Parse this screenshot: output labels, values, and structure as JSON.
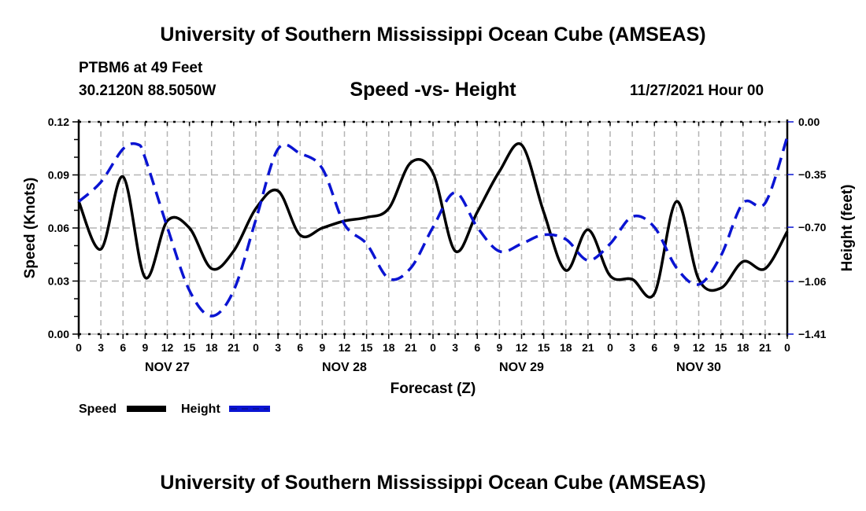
{
  "header": {
    "title": "University of Southern Mississippi Ocean Cube (AMSEAS)",
    "station": "PTBM6 at 49 Feet",
    "coords": "30.2120N  88.5050W",
    "subtitle": "Speed -vs- Height",
    "datestamp": "11/27/2021 Hour 00"
  },
  "footer": {
    "title": "University of Southern Mississippi Ocean Cube (AMSEAS)"
  },
  "chart_data": {
    "type": "line",
    "title": "Speed -vs- Height",
    "xlabel": "Forecast (Z)",
    "ylabel": "Speed (Knots)",
    "y2label": "Height (feet)",
    "xlim": [
      0,
      96
    ],
    "ylim": [
      0.0,
      0.12
    ],
    "y2lim": [
      -1.41,
      0.0
    ],
    "grid": true,
    "legend_position": "bottom-left",
    "x_tick_values": [
      0,
      3,
      6,
      9,
      12,
      15,
      18,
      21,
      24,
      27,
      30,
      33,
      36,
      39,
      42,
      45,
      48,
      51,
      54,
      57,
      60,
      63,
      66,
      69,
      72,
      75,
      78,
      81,
      84,
      87,
      90,
      93,
      96
    ],
    "x_tick_labels": [
      "0",
      "3",
      "6",
      "9",
      "12",
      "15",
      "18",
      "21",
      "0",
      "3",
      "6",
      "9",
      "12",
      "15",
      "18",
      "21",
      "0",
      "3",
      "6",
      "9",
      "12",
      "15",
      "18",
      "21",
      "0",
      "3",
      "6",
      "9",
      "12",
      "15",
      "18",
      "21",
      "0"
    ],
    "day_labels": [
      {
        "label": "NOV 27",
        "center_hour": 12
      },
      {
        "label": "NOV 28",
        "center_hour": 36
      },
      {
        "label": "NOV 29",
        "center_hour": 60
      },
      {
        "label": "NOV 30",
        "center_hour": 84
      }
    ],
    "y_tick_values": [
      0.0,
      0.03,
      0.06,
      0.09,
      0.12
    ],
    "y_tick_labels": [
      "0.00",
      "0.03",
      "0.06",
      "0.09",
      "0.12"
    ],
    "y2_tick_values": [
      0.0,
      -0.35,
      -0.7,
      -1.06,
      -1.41
    ],
    "y2_tick_labels": [
      "0.00",
      "−0.35",
      "−0.70",
      "−1.06",
      "−1.41"
    ],
    "series": [
      {
        "name": "Speed",
        "axis": "left",
        "color": "#000000",
        "style": "solid",
        "x": [
          0,
          3,
          6,
          9,
          12,
          15,
          18,
          21,
          24,
          27,
          30,
          33,
          36,
          39,
          42,
          45,
          48,
          51,
          54,
          57,
          60,
          63,
          66,
          69,
          72,
          75,
          78,
          81,
          84,
          87,
          90,
          93,
          96
        ],
        "values": [
          0.075,
          0.048,
          0.089,
          0.032,
          0.064,
          0.06,
          0.037,
          0.047,
          0.071,
          0.081,
          0.056,
          0.06,
          0.064,
          0.066,
          0.071,
          0.097,
          0.091,
          0.047,
          0.069,
          0.092,
          0.107,
          0.069,
          0.036,
          0.059,
          0.033,
          0.031,
          0.023,
          0.075,
          0.031,
          0.026,
          0.041,
          0.037,
          0.058
        ]
      },
      {
        "name": "Height",
        "axis": "right",
        "color": "#0a14d2",
        "style": "dashed",
        "x": [
          0,
          3,
          6,
          8,
          9,
          12,
          15,
          18,
          21,
          24,
          27,
          30,
          33,
          36,
          39,
          42,
          45,
          48,
          51,
          54,
          57,
          60,
          63,
          66,
          69,
          72,
          75,
          78,
          81,
          84,
          87,
          90,
          93,
          96
        ],
        "values": [
          -0.53,
          -0.4,
          -0.18,
          -0.15,
          -0.24,
          -0.7,
          -1.12,
          -1.29,
          -1.12,
          -0.65,
          -0.18,
          -0.21,
          -0.31,
          -0.68,
          -0.81,
          -1.04,
          -0.97,
          -0.7,
          -0.47,
          -0.7,
          -0.86,
          -0.81,
          -0.75,
          -0.78,
          -0.92,
          -0.81,
          -0.63,
          -0.7,
          -0.97,
          -1.08,
          -0.89,
          -0.54,
          -0.54,
          -0.1
        ]
      }
    ],
    "legend": [
      {
        "label": "Speed",
        "style": "solid",
        "color": "#000000"
      },
      {
        "label": "Height",
        "style": "dashed",
        "color": "#0a14d2"
      }
    ]
  }
}
